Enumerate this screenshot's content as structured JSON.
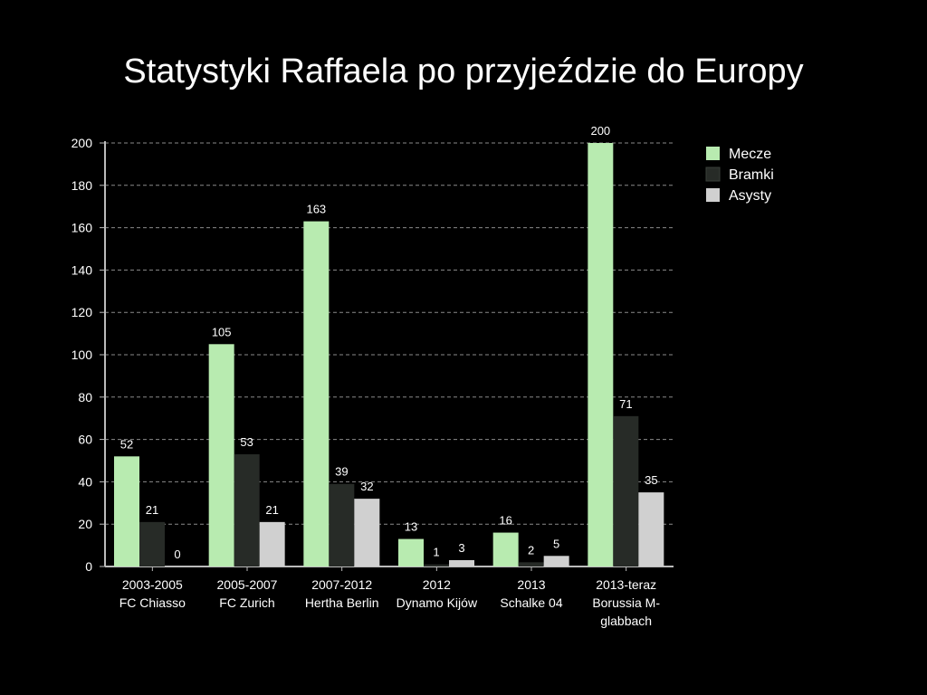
{
  "chart_data": {
    "type": "bar",
    "title": "Statystyki Raffaela po przyjeździe do Europy",
    "categories": [
      [
        "2003-2005",
        "FC Chiasso"
      ],
      [
        "2005-2007",
        "FC Zurich"
      ],
      [
        "2007-2012",
        "Hertha Berlin"
      ],
      [
        "2012",
        "Dynamo Kijów"
      ],
      [
        "2013",
        "Schalke 04"
      ],
      [
        "2013-teraz",
        "Borussia M-",
        "glabbach"
      ]
    ],
    "series": [
      {
        "name": "Mecze",
        "color": "#b8ebb0",
        "values": [
          52,
          105,
          163,
          13,
          16,
          200
        ]
      },
      {
        "name": "Bramki",
        "color": "#272b27",
        "values": [
          21,
          53,
          39,
          1,
          2,
          71
        ]
      },
      {
        "name": "Asysty",
        "color": "#d0d0d0",
        "values": [
          0,
          21,
          32,
          3,
          5,
          35
        ]
      }
    ],
    "ylim": [
      0,
      200
    ],
    "yticks": [
      0,
      20,
      40,
      60,
      80,
      100,
      120,
      140,
      160,
      180,
      200
    ],
    "grid": true,
    "legend_position": "right"
  }
}
